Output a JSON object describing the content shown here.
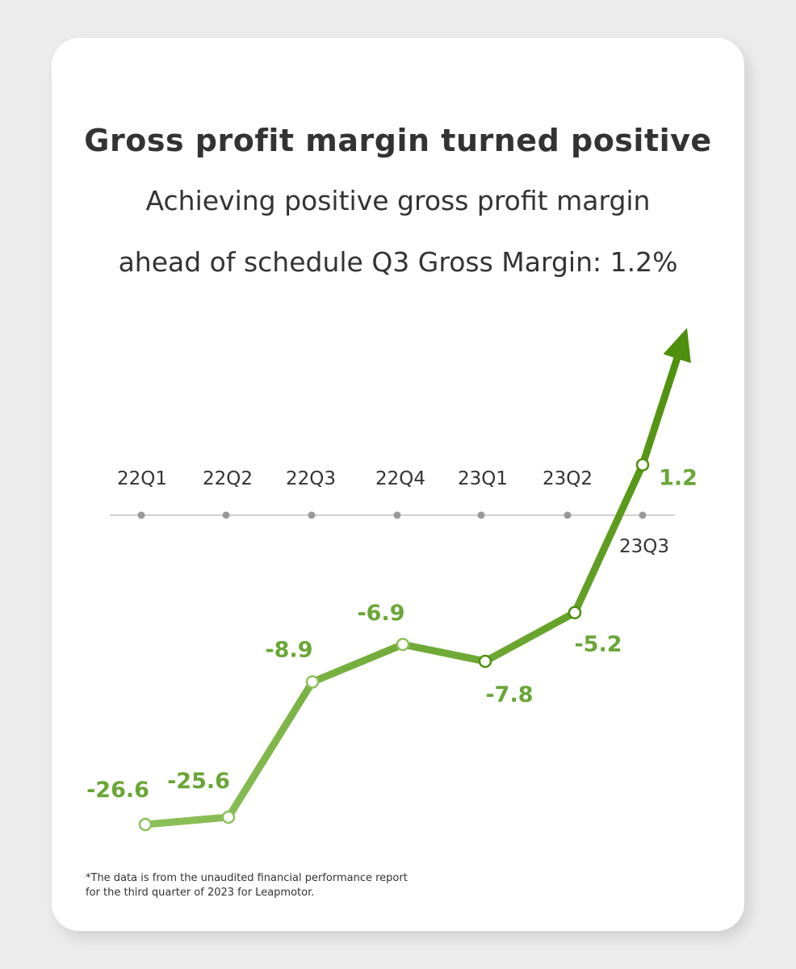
{
  "header": {
    "title": "Gross profit margin turned positive",
    "subtitle_line1": "Achieving positive gross profit margin",
    "subtitle_line2": "ahead of schedule Q3 Gross Margin: 1.2%"
  },
  "chart_data": {
    "type": "line",
    "categories": [
      "22Q1",
      "22Q2",
      "22Q3",
      "22Q4",
      "23Q1",
      "23Q2",
      "23Q3"
    ],
    "series": [
      {
        "values": [
          -26.6,
          -25.6,
          -8.9,
          -6.9,
          -7.8,
          -5.2,
          1.2
        ]
      }
    ],
    "value_labels": [
      "-26.6",
      "-25.6",
      "-8.9",
      "-6.9",
      "-7.8",
      "-5.2",
      "1.2"
    ],
    "zero_line": true,
    "trend_arrow": true,
    "grid": false,
    "colors": {
      "line_start": "#8dc05a",
      "line_end": "#4e8f0c",
      "label": "#6aa636",
      "axis": "#c4c4c4",
      "axis_dot": "#999999",
      "tick_text": "#333333"
    }
  },
  "footnote": {
    "line1": "*The data is from the unaudited financial performance report",
    "line2": "for the third quarter of 2023 for Leapmotor."
  }
}
